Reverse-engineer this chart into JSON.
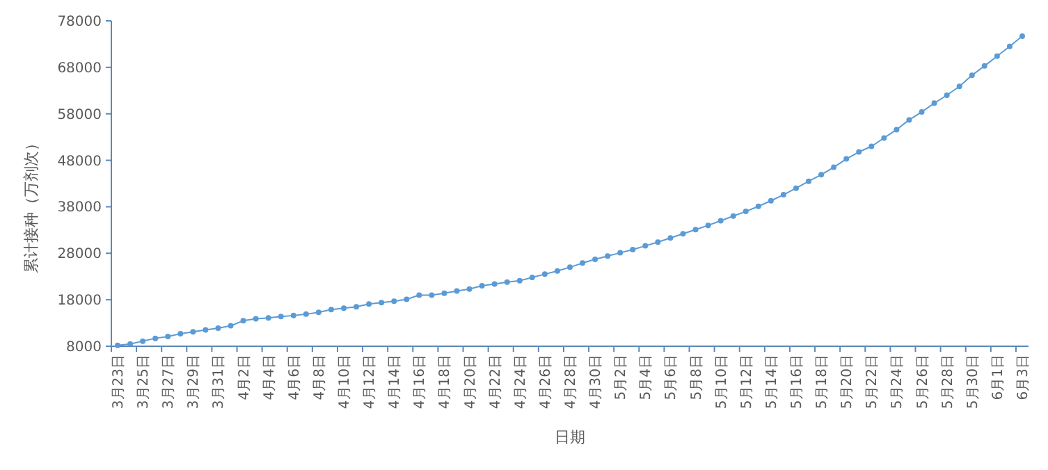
{
  "chart_data": {
    "type": "line",
    "xlabel": "日期",
    "ylabel": "累计接种（万剂次）",
    "categories": [
      "3月23日",
      null,
      "3月25日",
      null,
      "3月27日",
      null,
      "3月29日",
      null,
      "3月31日",
      null,
      "4月2日",
      null,
      "4月4日",
      null,
      "4月6日",
      null,
      "4月8日",
      null,
      "4月10日",
      null,
      "4月12日",
      null,
      "4月14日",
      null,
      "4月16日",
      null,
      "4月18日",
      null,
      "4月20日",
      null,
      "4月22日",
      null,
      "4月24日",
      null,
      "4月26日",
      null,
      "4月28日",
      null,
      "4月30日",
      null,
      "5月2日",
      null,
      "5月4日",
      null,
      "5月6日",
      null,
      "5月8日",
      null,
      "5月10日",
      null,
      "5月12日",
      null,
      "5月14日",
      null,
      "5月16日",
      null,
      "5月18日",
      null,
      "5月20日",
      null,
      "5月22日",
      null,
      "5月24日",
      null,
      "5月26日",
      null,
      "5月28日",
      null,
      "5月30日",
      null,
      "6月1日",
      null,
      "6月3日"
    ],
    "series": [
      {
        "color": "#5b9bd5",
        "values": [
          8200,
          8500,
          9100,
          9700,
          10100,
          10700,
          11100,
          11500,
          11900,
          12400,
          13500,
          13900,
          14100,
          14400,
          14600,
          14900,
          15300,
          15900,
          16200,
          16500,
          17100,
          17400,
          17700,
          18100,
          19000,
          19000,
          19400,
          19900,
          20300,
          21000,
          21400,
          21800,
          22100,
          22800,
          23500,
          24200,
          25000,
          25900,
          26700,
          27400,
          28100,
          28800,
          29600,
          30400,
          31300,
          32200,
          33100,
          34000,
          35000,
          36000,
          37000,
          38100,
          39300,
          40600,
          42000,
          43500,
          44900,
          46500,
          48300,
          49800,
          51000,
          52800,
          54600,
          56700,
          58400,
          60300,
          62000,
          63900,
          66300,
          68300,
          70400,
          72500,
          74700
        ]
      }
    ],
    "ylim": [
      8000,
      78000
    ],
    "yticks": [
      8000,
      18000,
      28000,
      38000,
      48000,
      58000,
      68000,
      78000
    ],
    "marker": "circle",
    "grid": false
  }
}
